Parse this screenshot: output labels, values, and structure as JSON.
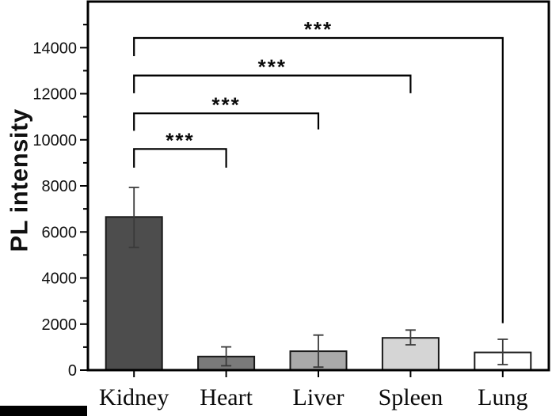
{
  "figure": {
    "background": "#ffffff",
    "axis_color": "#000000"
  },
  "chart_data": {
    "type": "bar",
    "title": "",
    "ylabel": "PL intensity",
    "xlabel": "",
    "categories": [
      "Kidney",
      "Heart",
      "Liver",
      "Spleen",
      "Lung"
    ],
    "series": [
      {
        "name": "PL intensity",
        "values": [
          6650,
          590,
          820,
          1400,
          770
        ]
      }
    ],
    "error_bars": {
      "low": [
        5330,
        190,
        130,
        1100,
        240
      ],
      "high": [
        7930,
        1010,
        1520,
        1740,
        1340
      ]
    },
    "bar_fill_colors": [
      "#4d4d4d",
      "#7a7a7a",
      "#a9a9a9",
      "#d5d5d5",
      "#ffffff"
    ],
    "bar_edge_color": "#1a1a1a",
    "errorbar_color": "#3a3a3a",
    "ylim": [
      0,
      16000
    ],
    "yticks": [
      0,
      2000,
      4000,
      6000,
      8000,
      10000,
      12000,
      14000
    ],
    "yticks_minor": [
      1000,
      3000,
      5000,
      7000,
      9000,
      11000,
      13000,
      15000
    ],
    "grid": false,
    "legend": null,
    "significance_brackets": [
      {
        "from": "Kidney",
        "to": "Heart",
        "label": "***",
        "top_value": 9600,
        "left_drop_value": 8790,
        "right_drop_value": 8790
      },
      {
        "from": "Kidney",
        "to": "Liver",
        "label": "***",
        "top_value": 11150,
        "left_drop_value": 10390,
        "right_drop_value": 10450
      },
      {
        "from": "Kidney",
        "to": "Spleen",
        "label": "***",
        "top_value": 12790,
        "left_drop_value": 12020,
        "right_drop_value": 12020
      },
      {
        "from": "Kidney",
        "to": "Lung",
        "label": "***",
        "top_value": 14420,
        "left_drop_value": 13630,
        "right_drop_value": 2040
      }
    ]
  },
  "artifacts": {
    "bottom_left_black_bar": {
      "present": true
    }
  }
}
